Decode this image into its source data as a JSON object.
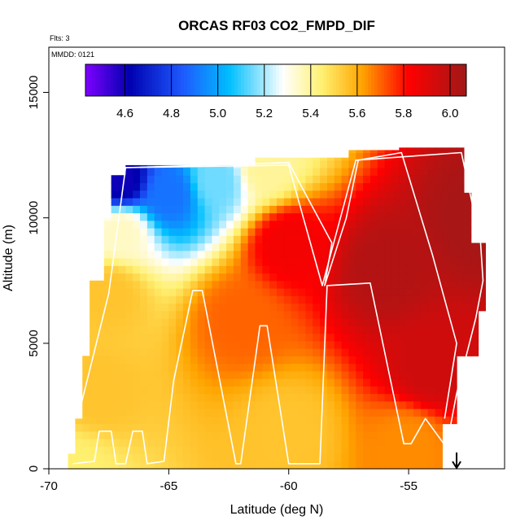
{
  "chart_data": {
    "type": "heatmap",
    "title": "ORCAS RF03 CO2_FMPD_DIF",
    "xlabel": "Latitude (deg N)",
    "ylabel": "Altitude (m)",
    "xlim": [
      -70,
      -51
    ],
    "ylim": [
      0,
      16800
    ],
    "x_ticks": [
      -70,
      -65,
      -60,
      -55
    ],
    "x_tick_labels": [
      "-70",
      "-65",
      "-60",
      "-55"
    ],
    "y_ticks": [
      0,
      5000,
      10000,
      15000
    ],
    "y_tick_labels": [
      "0",
      "5000",
      "10000",
      "15000"
    ],
    "notes": [
      "Flts: 3",
      "MMDD: 0121"
    ],
    "colorbar": {
      "range": [
        4.43,
        6.07
      ],
      "ticks": [
        4.6,
        4.8,
        5.0,
        5.2,
        5.4,
        5.6,
        5.8,
        6.0
      ],
      "tick_labels": [
        "4.6",
        "4.8",
        "5.0",
        "5.2",
        "5.4",
        "5.6",
        "5.8",
        "6.0"
      ],
      "colors": [
        "#7F00FF",
        "#0000B0",
        "#1E5AFF",
        "#00BFFF",
        "#FFFFFF",
        "#FFF070",
        "#FFA500",
        "#FF0000",
        "#A01818"
      ],
      "stops": [
        4.43,
        4.62,
        4.85,
        5.05,
        5.28,
        5.45,
        5.62,
        5.82,
        6.07
      ],
      "marker_color": "#8B2A2A"
    },
    "field": {
      "description": "Curtain of CO2 difference values vs latitude and altitude",
      "top_altitude_m": 12200,
      "bottom_altitude_m": 0,
      "lat_range": [
        -69.2,
        -51.6
      ],
      "anchors": [
        {
          "lat": -69.0,
          "alt": 0,
          "value": 5.45
        },
        {
          "lat": -68.0,
          "alt": 3000,
          "value": 5.55
        },
        {
          "lat": -67.5,
          "alt": 7000,
          "value": 5.55
        },
        {
          "lat": -67.0,
          "alt": 9500,
          "value": 5.35
        },
        {
          "lat": -67.0,
          "alt": 11500,
          "value": 4.6
        },
        {
          "lat": -65.0,
          "alt": 11000,
          "value": 4.9
        },
        {
          "lat": -63.0,
          "alt": 11500,
          "value": 5.15
        },
        {
          "lat": -61.0,
          "alt": 12000,
          "value": 5.4
        },
        {
          "lat": -62.0,
          "alt": 6000,
          "value": 5.7
        },
        {
          "lat": -60.0,
          "alt": 9000,
          "value": 5.85
        },
        {
          "lat": -56.0,
          "alt": 8000,
          "value": 6.02
        },
        {
          "lat": -54.0,
          "alt": 4000,
          "value": 5.95
        },
        {
          "lat": -55.0,
          "alt": 1000,
          "value": 5.65
        },
        {
          "lat": -60.0,
          "alt": 1500,
          "value": 5.55
        },
        {
          "lat": -52.0,
          "alt": 10000,
          "value": 6.05
        }
      ]
    },
    "flight_tracks": [
      {
        "name": "track-1",
        "points": [
          [
            -69.0,
            200
          ],
          [
            -68.1,
            300
          ],
          [
            -67.9,
            1500
          ],
          [
            -67.4,
            1500
          ],
          [
            -67.2,
            200
          ],
          [
            -66.8,
            200
          ],
          [
            -66.5,
            1500
          ],
          [
            -66.1,
            1500
          ],
          [
            -65.9,
            200
          ],
          [
            -65.2,
            300
          ],
          [
            -64.8,
            3500
          ],
          [
            -64.0,
            7100
          ],
          [
            -63.6,
            7100
          ],
          [
            -62.2,
            200
          ],
          [
            -62.0,
            200
          ],
          [
            -61.2,
            5700
          ],
          [
            -60.9,
            5700
          ],
          [
            -60.0,
            200
          ],
          [
            -58.7,
            200
          ],
          [
            -58.4,
            7300
          ],
          [
            -56.6,
            7400
          ],
          [
            -55.2,
            1000
          ],
          [
            -54.9,
            1000
          ],
          [
            -54.3,
            2000
          ],
          [
            -53.0,
            300
          ]
        ]
      },
      {
        "name": "track-2",
        "points": [
          [
            -68.8,
            2000
          ],
          [
            -67.5,
            7000
          ],
          [
            -66.8,
            12000
          ],
          [
            -60.0,
            12100
          ],
          [
            -58.6,
            7300
          ],
          [
            -57.2,
            12300
          ],
          [
            -52.8,
            12600
          ],
          [
            -52.0,
            9000
          ],
          [
            -51.9,
            7500
          ],
          [
            -52.2,
            6000
          ],
          [
            -53.0,
            3000
          ],
          [
            -53.4,
            1000
          ]
        ]
      },
      {
        "name": "track-3",
        "points": [
          [
            -66.8,
            12000
          ],
          [
            -60.0,
            12200
          ],
          [
            -58.2,
            9000
          ],
          [
            -58.5,
            7300
          ],
          [
            -57.6,
            10000
          ],
          [
            -57.1,
            12300
          ],
          [
            -55.3,
            12600
          ],
          [
            -54.0,
            8500
          ],
          [
            -53.0,
            5000
          ],
          [
            -53.5,
            2000
          ]
        ]
      }
    ],
    "end_arrow_lat": -53.0
  }
}
